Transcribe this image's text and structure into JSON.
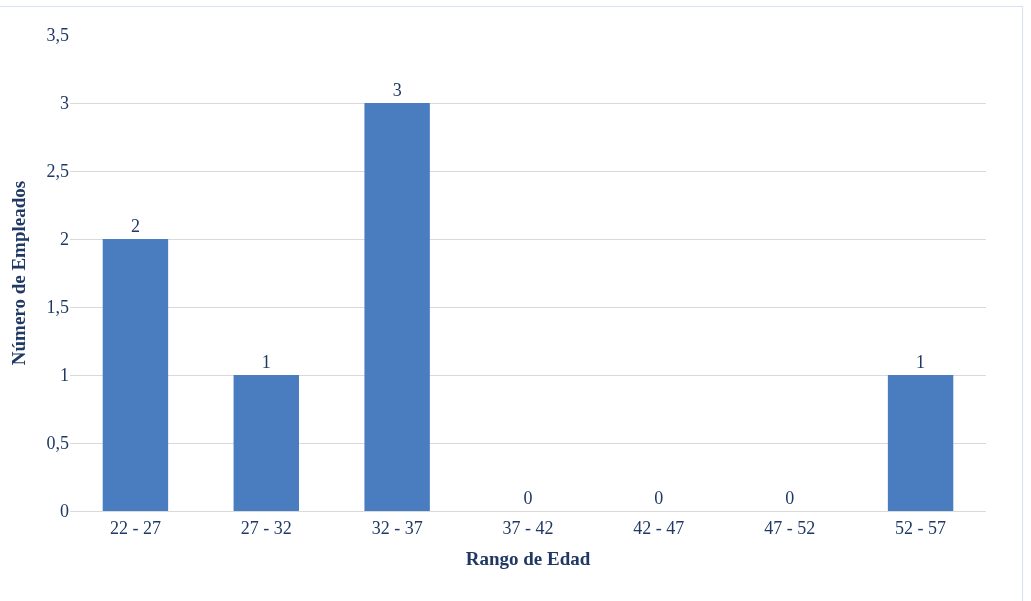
{
  "chart_data": {
    "type": "bar",
    "xlabel": "Rango de Edad",
    "ylabel": "Número de Empleados",
    "categories": [
      "22 - 27",
      "27 - 32",
      "32 - 37",
      "37 - 42",
      "42 - 47",
      "47 - 52",
      "52 - 57"
    ],
    "values": [
      2,
      1,
      3,
      0,
      0,
      0,
      1
    ],
    "color": "#4a7cc0",
    "ylim": [
      0,
      3.5
    ],
    "yticks": [
      0,
      {
        "value": 0.5,
        "label": "0,5"
      },
      1,
      {
        "value": 1.5,
        "label": "1,5"
      },
      2,
      {
        "value": 2.5,
        "label": "2,5"
      },
      3,
      {
        "value": 3.5,
        "label": "3,5"
      }
    ],
    "grid": "y",
    "data_labels": true,
    "legend": false
  }
}
